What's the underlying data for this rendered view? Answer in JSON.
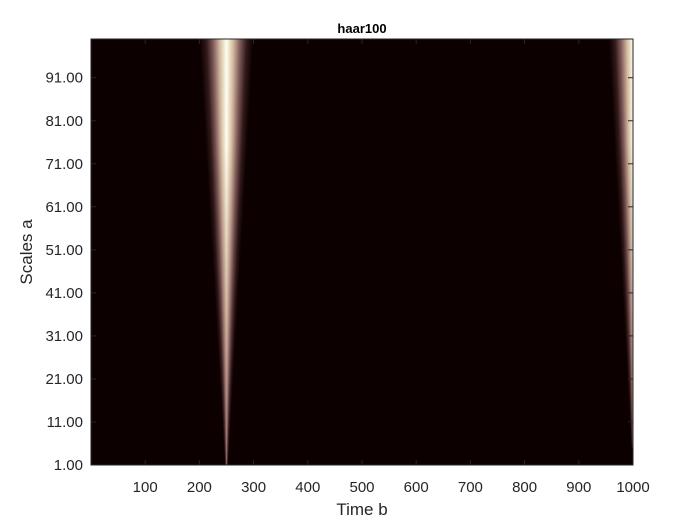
{
  "chart_data": {
    "type": "heatmap",
    "title": "haar100",
    "xlabel": "Time b",
    "ylabel": "Scales a",
    "xlim": [
      0,
      1000
    ],
    "ylim": [
      1,
      100
    ],
    "x_ticks": [
      100,
      200,
      300,
      400,
      500,
      600,
      700,
      800,
      900,
      1000
    ],
    "x_tick_labels": [
      "100",
      "200",
      "300",
      "400",
      "500",
      "600",
      "700",
      "800",
      "900",
      "1000"
    ],
    "y_ticks": [
      1,
      11,
      21,
      31,
      41,
      51,
      61,
      71,
      81,
      91
    ],
    "y_tick_labels": [
      "1.00",
      "11.00",
      "21.00",
      "31.00",
      "41.00",
      "51.00",
      "61.00",
      "71.00",
      "81.00",
      "91.00"
    ],
    "grid": false,
    "colormap": "pink",
    "colors": {
      "background": "#0d0000",
      "low": "#3a1f1f",
      "mid": "#b08888",
      "high": "#fffff0"
    },
    "features": [
      {
        "name": "",
        "x_center": 250,
        "scale_min": 1,
        "scale_max": 100,
        "half_width_at_min": 3,
        "half_width_at_max": 50
      },
      {
        "name": "",
        "x_center": 1000,
        "scale_min": 5,
        "scale_max": 100,
        "half_width_at_min": 3,
        "half_width_at_max": 45
      }
    ]
  }
}
